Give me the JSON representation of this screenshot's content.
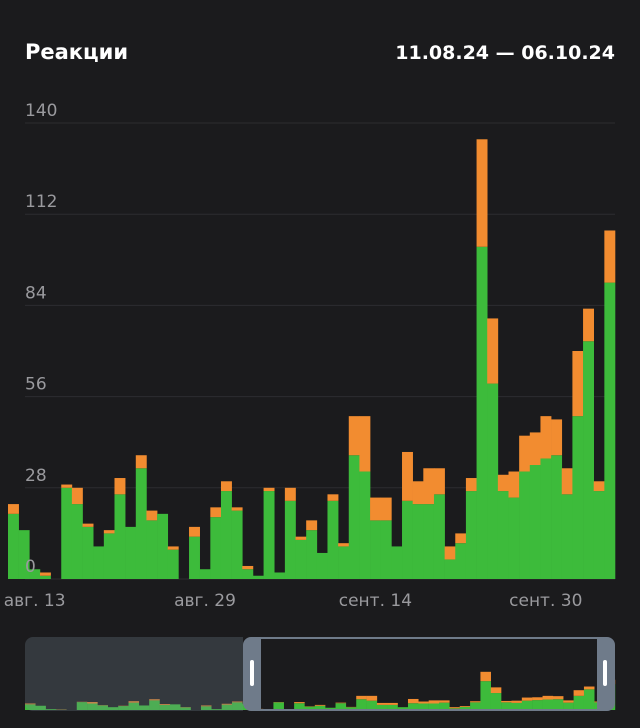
{
  "header": {
    "title": "Реакции",
    "date_range": "11.08.24 — 06.10.24"
  },
  "colors": {
    "background": "#1b1b1d",
    "green": "#3dbb3b",
    "orange": "#f28c30",
    "grid": "#2d2d30",
    "tick_text": "#9a9a9e"
  },
  "chart_data": {
    "type": "bar",
    "stacked": true,
    "y_ticks": [
      "0",
      "28",
      "56",
      "84",
      "112",
      "140"
    ],
    "ylim": [
      0,
      140
    ],
    "x_tick_labels": [
      "авг. 13",
      "авг. 29",
      "сент. 14",
      "сент. 30"
    ],
    "x_tick_days": [
      2,
      18,
      34,
      50
    ],
    "days": 57,
    "series": [
      {
        "name": "",
        "color": "#3dbb3b",
        "values": [
          20,
          15,
          3,
          1,
          0,
          28,
          23,
          16,
          10,
          14,
          26,
          16,
          34,
          18,
          20,
          9,
          0,
          13,
          3,
          19,
          27,
          21,
          3,
          1,
          27,
          2,
          24,
          12,
          15,
          8,
          24,
          10,
          38,
          33,
          18,
          18,
          10,
          24,
          23,
          23,
          26,
          6,
          11,
          27,
          102,
          60,
          27,
          25,
          33,
          35,
          37,
          38,
          26,
          50,
          73,
          27,
          91
        ]
      },
      {
        "name": "",
        "color": "#f28c30",
        "values": [
          3,
          0,
          0,
          1,
          0,
          1,
          5,
          1,
          0,
          1,
          5,
          0,
          4,
          3,
          0,
          1,
          0,
          3,
          0,
          3,
          3,
          1,
          1,
          0,
          1,
          0,
          4,
          1,
          3,
          0,
          2,
          1,
          12,
          17,
          7,
          7,
          0,
          15,
          7,
          11,
          8,
          4,
          3,
          4,
          33,
          20,
          5,
          8,
          11,
          10,
          13,
          11,
          8,
          20,
          10,
          3,
          16
        ]
      }
    ]
  }
}
